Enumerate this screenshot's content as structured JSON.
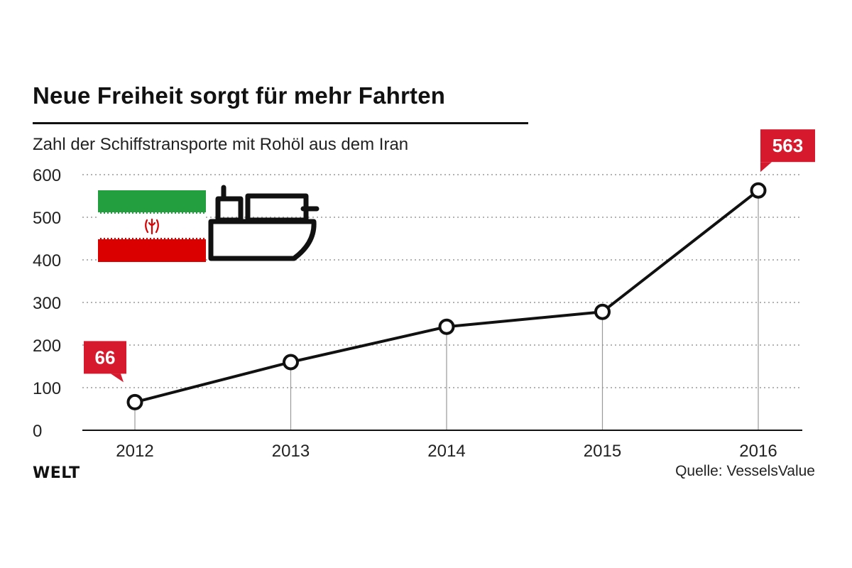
{
  "header": {
    "title": "Neue Freiheit sorgt für mehr Fahrten",
    "subtitle": "Zahl der Schiffstransporte mit Rohöl aus dem Iran"
  },
  "footer": {
    "brand": "WELT",
    "source": "Quelle: VesselsValue"
  },
  "icons": [
    "iran-flag-icon",
    "oil-tanker-ship-icon"
  ],
  "colors": {
    "line": "#111111",
    "callout": "#d7192d",
    "flag_green": "#239f40",
    "flag_red": "#da0000",
    "grid": "#999999"
  },
  "chart_data": {
    "type": "line",
    "x": [
      "2012",
      "2013",
      "2014",
      "2015",
      "2016"
    ],
    "values": [
      66,
      160,
      243,
      278,
      563
    ],
    "ylim": [
      0,
      600
    ],
    "yticks": [
      0,
      100,
      200,
      300,
      400,
      500,
      600
    ],
    "grid": true,
    "grid_style": "dotted",
    "callouts": [
      {
        "x": "2012",
        "label": "66"
      },
      {
        "x": "2016",
        "label": "563"
      }
    ]
  }
}
